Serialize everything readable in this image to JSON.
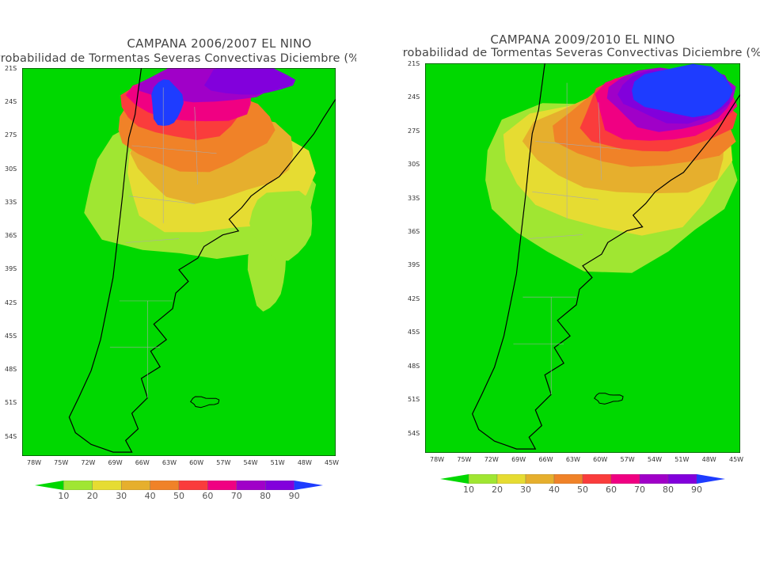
{
  "figure": {
    "panels": [
      {
        "title": "CAMPANA 2006/2007 EL NINO",
        "subtitle": "Probabilidad de Tormentas Severas Convectivas Diciembre (%)"
      },
      {
        "title": "CAMPANA 2009/2010 EL NINO",
        "subtitle": "Probabilidad de Tormentas Severas Convectivas Diciembre (%)"
      }
    ],
    "latitude_ticks": [
      "21S",
      "24S",
      "27S",
      "30S",
      "33S",
      "36S",
      "39S",
      "42S",
      "45S",
      "48S",
      "51S",
      "54S"
    ],
    "longitude_ticks": [
      "78W",
      "75W",
      "72W",
      "69W",
      "66W",
      "63W",
      "60W",
      "57W",
      "54W",
      "51W",
      "48W",
      "45W"
    ],
    "colorbar": {
      "levels": [
        "10",
        "20",
        "30",
        "40",
        "50",
        "60",
        "70",
        "80",
        "90"
      ],
      "colors": [
        "#00d800",
        "#a0e632",
        "#e6dc32",
        "#e6af2d",
        "#f08228",
        "#fa3c3c",
        "#f00082",
        "#a000c8",
        "#8200dc",
        "#1e3cff"
      ]
    },
    "colors": {
      "background_field": "#00d800",
      "coast_lines": "#000000",
      "boundaries": "#aaaaaa"
    }
  }
}
